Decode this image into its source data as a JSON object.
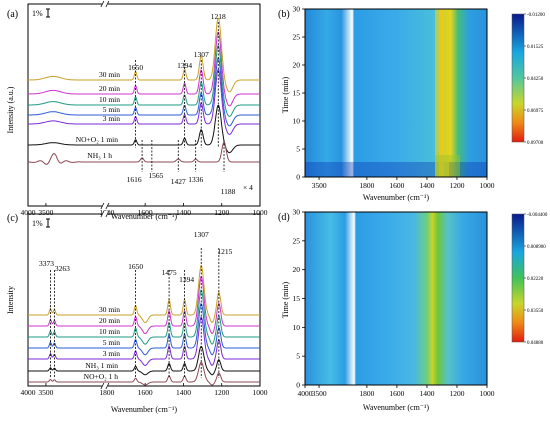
{
  "chart_data": [
    {
      "panel": "(a)",
      "type": "line",
      "xlabel": "Wavenumber (cm⁻¹)",
      "ylabel": "Intensity (a.u.)",
      "scale_bar": "1%",
      "x_ticks": [
        "4000",
        "3500",
        "1800",
        "1600",
        "1400",
        "1200",
        "1000"
      ],
      "series": [
        {
          "name": "30 min",
          "color": "#c9a227"
        },
        {
          "name": "20 min",
          "color": "#cc33cc"
        },
        {
          "name": "10 min",
          "color": "#1f9a84"
        },
        {
          "name": "5 min",
          "color": "#2a5bd7"
        },
        {
          "name": "3 min",
          "color": "#7a2ad7"
        },
        {
          "name": "NO+O₂ 1 min",
          "color": "#111111"
        },
        {
          "name": "NH₃ 1 h",
          "color": "#8b4a55"
        }
      ],
      "peak_labels": [
        "1650",
        "1394",
        "1307",
        "1218",
        "1616",
        "1565",
        "1427",
        "1336",
        "1188"
      ],
      "annotation": "× 4"
    },
    {
      "panel": "(b)",
      "type": "heatmap",
      "xlabel": "Wavenumber (cm⁻¹)",
      "ylabel": "Time (min)",
      "x_ticks": [
        "3500",
        "1800",
        "1600",
        "1400",
        "1200",
        "1000"
      ],
      "y_ticks": [
        "0",
        "5",
        "10",
        "15",
        "20",
        "25",
        "30"
      ],
      "ylim": [
        0,
        30
      ],
      "colorbar_ticks": [
        "-0.01200",
        "0.01525",
        "0.04250",
        "0.06975",
        "0.09700"
      ]
    },
    {
      "panel": "(c)",
      "type": "line",
      "xlabel": "Wavenumber (cm⁻¹)",
      "ylabel": "Intensity",
      "scale_bar": "1%",
      "x_ticks": [
        "4000",
        "3500",
        "1800",
        "1600",
        "1400",
        "1200",
        "1000"
      ],
      "series": [
        {
          "name": "30 min",
          "color": "#c9a227"
        },
        {
          "name": "20 min",
          "color": "#cc33cc"
        },
        {
          "name": "10 min",
          "color": "#1f9a84"
        },
        {
          "name": "5 min",
          "color": "#2a5bd7"
        },
        {
          "name": "3 min",
          "color": "#7a2ad7"
        },
        {
          "name": "NH₃ 1 min",
          "color": "#111111"
        },
        {
          "name": "NO+O₂ 1 h",
          "color": "#8b4a55"
        }
      ],
      "peak_labels": [
        "3373",
        "3263",
        "1650",
        "1475",
        "1394",
        "1307",
        "1215"
      ]
    },
    {
      "panel": "(d)",
      "type": "heatmap",
      "xlabel": "Wavenumber (cm⁻¹)",
      "ylabel": "Time (min)",
      "x_ticks": [
        "4000",
        "3500",
        "1800",
        "1600",
        "1400",
        "1200",
        "1000"
      ],
      "y_ticks": [
        "0",
        "5",
        "10",
        "15",
        "20",
        "25",
        "30"
      ],
      "ylim": [
        0,
        30
      ],
      "colorbar_ticks": [
        "-0.004400",
        "0.008900",
        "0.02220",
        "0.03550",
        "0.04880"
      ]
    }
  ]
}
